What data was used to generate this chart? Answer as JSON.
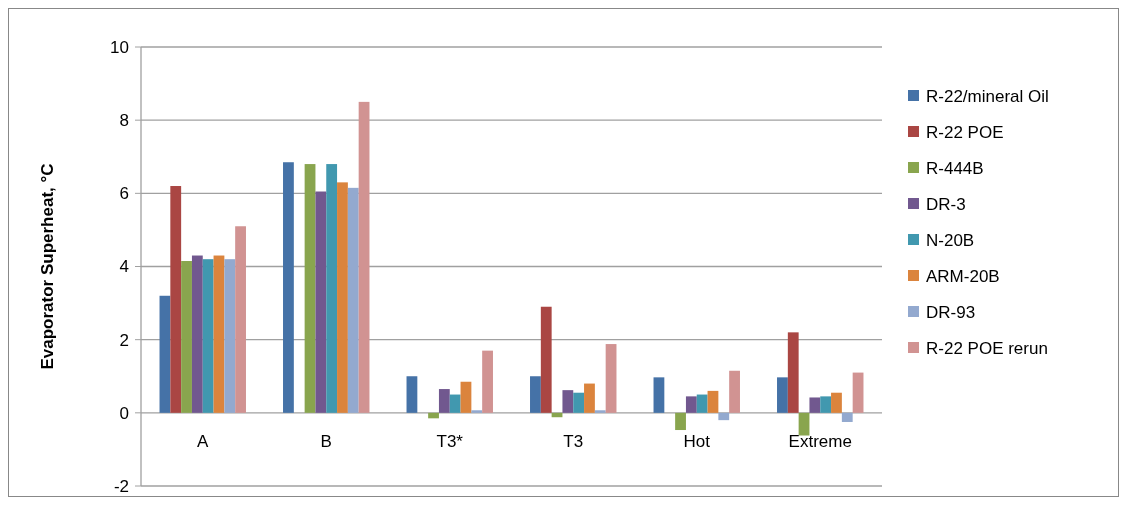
{
  "chart_data": {
    "type": "bar",
    "ylabel": "Evaporator Superheat, °C",
    "categories": [
      "A",
      "B",
      "T3*",
      "T3",
      "Hot",
      "Extreme"
    ],
    "series": [
      {
        "name": "R-22/mineral Oil",
        "color": "#4572a7",
        "values": [
          3.2,
          6.85,
          1.0,
          1.0,
          0.97,
          0.97
        ]
      },
      {
        "name": "R-22 POE",
        "color": "#aa4643",
        "values": [
          6.2,
          null,
          null,
          2.9,
          null,
          2.2
        ]
      },
      {
        "name": "R-444B",
        "color": "#89a54e",
        "values": [
          4.15,
          6.8,
          -0.15,
          -0.12,
          -0.47,
          -0.62
        ]
      },
      {
        "name": "DR-3",
        "color": "#71588f",
        "values": [
          4.3,
          6.05,
          0.65,
          0.62,
          0.45,
          0.42
        ]
      },
      {
        "name": "N-20B",
        "color": "#4198af",
        "values": [
          4.2,
          6.8,
          0.5,
          0.55,
          0.5,
          0.45
        ]
      },
      {
        "name": "ARM-20B",
        "color": "#db843d",
        "values": [
          4.3,
          6.3,
          0.85,
          0.8,
          0.6,
          0.55
        ]
      },
      {
        "name": "DR-93",
        "color": "#93a9cf",
        "values": [
          4.2,
          6.15,
          0.07,
          0.07,
          -0.2,
          -0.25
        ]
      },
      {
        "name": "R-22 POE rerun",
        "color": "#d19392",
        "values": [
          5.1,
          8.5,
          1.7,
          1.88,
          1.15,
          1.1
        ]
      }
    ],
    "ylim": [
      -2,
      10
    ],
    "yticks": [
      -2,
      0,
      2,
      4,
      6,
      8,
      10
    ],
    "grid": "y",
    "legend": "right"
  }
}
